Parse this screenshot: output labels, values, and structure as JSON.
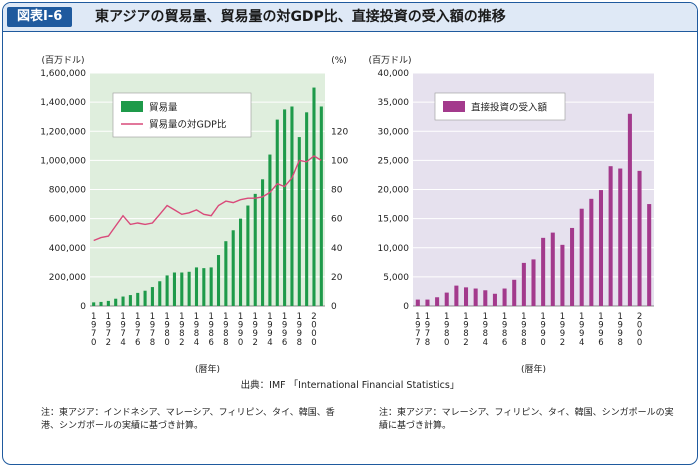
{
  "header": {
    "figure_label": "図表Ⅰ-6",
    "title": "東アジアの貿易量、貿易量の対GDP比、直接投資の受入額の推移"
  },
  "chart_data": [
    {
      "type": "bar",
      "categories": [
        "1970",
        "1971",
        "1972",
        "1973",
        "1974",
        "1975",
        "1976",
        "1977",
        "1978",
        "1979",
        "1980",
        "1981",
        "1982",
        "1983",
        "1984",
        "1985",
        "1986",
        "1987",
        "1988",
        "1989",
        "1990",
        "1991",
        "1992",
        "1993",
        "1994",
        "1995",
        "1996",
        "1997",
        "1998",
        "1999",
        "2000",
        "2001"
      ],
      "xtick_labels": [
        "1970",
        "1972",
        "1974",
        "1976",
        "1978",
        "1980",
        "1982",
        "1984",
        "1986",
        "1988",
        "1990",
        "1992",
        "1994",
        "1996",
        "1998",
        "2000"
      ],
      "xlabel": "(暦年)",
      "ylabel_left": "(百万ドル)",
      "ylabel_right": "(%)",
      "ylim": [
        0,
        1600000
      ],
      "yticks": [
        "0",
        "200,000",
        "400,000",
        "600,000",
        "800,000",
        "1,000,000",
        "1,200,000",
        "1,400,000",
        "1,600,000"
      ],
      "y2lim": [
        0,
        160
      ],
      "y2ticks": [
        "0",
        "20",
        "40",
        "60",
        "80",
        "100",
        "120"
      ],
      "grid": true,
      "legend_position": "top-left",
      "series": [
        {
          "name": "貿易量",
          "kind": "bar",
          "axis": "left",
          "color": "#1e9a4a",
          "values": [
            25000,
            28000,
            35000,
            50000,
            65000,
            75000,
            90000,
            105000,
            130000,
            170000,
            210000,
            230000,
            230000,
            235000,
            265000,
            260000,
            265000,
            350000,
            445000,
            520000,
            600000,
            690000,
            770000,
            870000,
            1040000,
            1280000,
            1350000,
            1370000,
            1160000,
            1330000,
            1500000,
            1370000
          ]
        },
        {
          "name": "貿易量の対GDP比",
          "kind": "line",
          "axis": "right",
          "color": "#d94a7a",
          "values": [
            45,
            47,
            48,
            55,
            62,
            56,
            57,
            56,
            57,
            63,
            69,
            66,
            63,
            64,
            66,
            63,
            62,
            69,
            72,
            71,
            73,
            74,
            74,
            75,
            78,
            84,
            82,
            88,
            100,
            99,
            103,
            100
          ]
        }
      ],
      "note": "注：東アジア：インドネシア、マレーシア、フィリピン、タイ、韓国、香港、シンガポールの実績に基づき計算。"
    },
    {
      "type": "bar",
      "categories": [
        "1977",
        "1978",
        "1979",
        "1980",
        "1981",
        "1982",
        "1983",
        "1984",
        "1985",
        "1986",
        "1987",
        "1988",
        "1989",
        "1990",
        "1991",
        "1992",
        "1993",
        "1994",
        "1995",
        "1996",
        "1997",
        "1998",
        "1999",
        "2000",
        "2001"
      ],
      "xtick_labels": [
        "1977",
        "1978",
        "1980",
        "1982",
        "1984",
        "1986",
        "1988",
        "1990",
        "1992",
        "1994",
        "1996",
        "1998",
        "2000"
      ],
      "xlabel": "(暦年)",
      "ylabel": "(百万ドル)",
      "ylim": [
        0,
        40000
      ],
      "yticks": [
        "0",
        "5,000",
        "10,000",
        "15,000",
        "20,000",
        "25,000",
        "30,000",
        "35,000",
        "40,000"
      ],
      "grid": true,
      "legend_position": "top-left",
      "series": [
        {
          "name": "直接投資の受入額",
          "kind": "bar",
          "color": "#a33a8c",
          "values": [
            1100,
            1100,
            1500,
            2300,
            3500,
            3200,
            3000,
            2700,
            2100,
            3000,
            4500,
            7400,
            8000,
            11700,
            12600,
            10500,
            13400,
            16700,
            18400,
            19900,
            24000,
            23600,
            33000,
            23200,
            17500
          ]
        }
      ],
      "note": "注：東アジア：マレーシア、フィリピン、タイ、韓国、シンガポールの実績に基づき計算。"
    }
  ],
  "source": "出典：IMF 「International Financial Statistics」"
}
